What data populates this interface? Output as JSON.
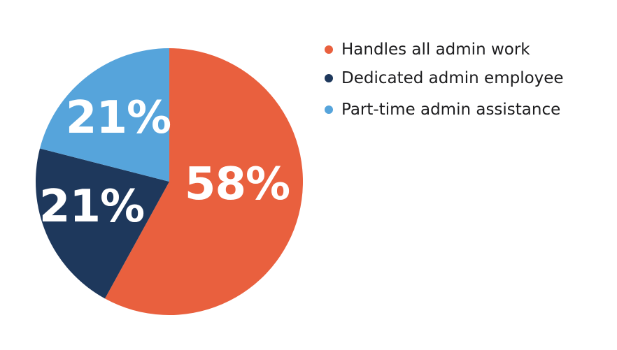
{
  "chart_data": {
    "type": "pie",
    "title": "",
    "direction": "clockwise",
    "start_angle_deg": 0,
    "legend_position": "right",
    "background_color": "#FFFFFF",
    "slice_label_color": "#FFFFFF",
    "legend_text_color": "#1D1D1F",
    "slices": [
      {
        "label": "Handles all admin work",
        "value": 58,
        "display": "58%",
        "color": "#E9603E"
      },
      {
        "label": "Dedicated admin employee",
        "value": 21,
        "display": "21%",
        "color": "#1E385C"
      },
      {
        "label": "Part-time admin assistance",
        "value": 21,
        "display": "21%",
        "color": "#56A4DB"
      }
    ]
  }
}
